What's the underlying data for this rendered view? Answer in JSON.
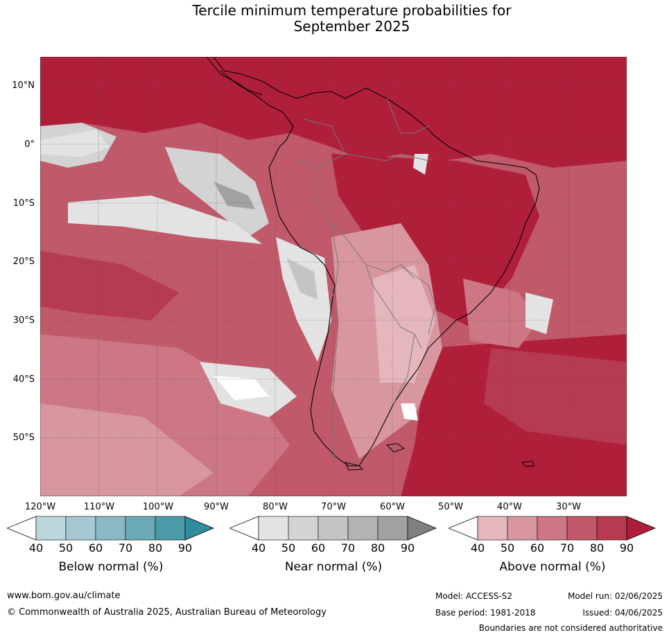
{
  "title_line1": "Tercile minimum temperature probabilities for",
  "title_line2": "September 2025",
  "lat_labels": [
    "10°N",
    "0°",
    "10°S",
    "20°S",
    "30°S",
    "40°S",
    "50°S"
  ],
  "lon_labels": [
    "120°W",
    "110°W",
    "100°W",
    "90°W",
    "80°W",
    "70°W",
    "60°W",
    "50°W",
    "40°W",
    "30°W"
  ],
  "colorbars": [
    {
      "title": "Below normal (%)",
      "ticks": [
        "40",
        "50",
        "60",
        "70",
        "80",
        "90"
      ],
      "colors": [
        "#ffffff",
        "#bcd6dd",
        "#a6c9d1",
        "#8bb8c4",
        "#6aa9b6",
        "#4a9aa9",
        "#2f8c9f"
      ]
    },
    {
      "title": "Near normal (%)",
      "ticks": [
        "40",
        "50",
        "60",
        "70",
        "80",
        "90"
      ],
      "colors": [
        "#ffffff",
        "#e3e3e3",
        "#d3d3d3",
        "#c4c4c4",
        "#b3b3b3",
        "#a1a1a1",
        "#808080"
      ]
    },
    {
      "title": "Above normal (%)",
      "ticks": [
        "40",
        "50",
        "60",
        "70",
        "80",
        "90"
      ],
      "colors": [
        "#ffffff",
        "#e5b7bd",
        "#d8979f",
        "#cc7783",
        "#c0596a",
        "#b63a50",
        "#ad1d38"
      ]
    }
  ],
  "footer": {
    "website": "www.bom.gov.au/climate",
    "copyright": "© Commonwealth of Australia 2025, Australian Bureau of Meteorology",
    "model": "Model: ACCESS-S2",
    "base_period": "Base period: 1981-2018",
    "model_run": "Model run: 02/06/2025",
    "issued": "Issued: 04/06/2025",
    "disclaimer": "Boundaries are not considered authoritative"
  }
}
